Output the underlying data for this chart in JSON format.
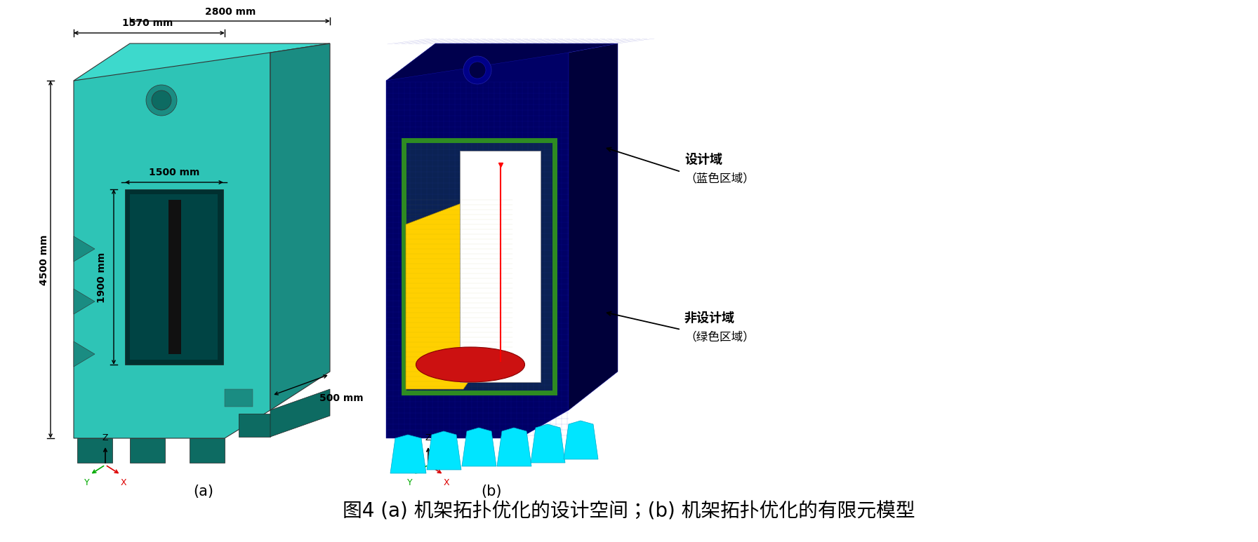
{
  "figure_width": 17.72,
  "figure_height": 7.48,
  "bg_color": "#ffffff",
  "caption": "图4 (a) 机架拓扑优化的设计空间；(b) 机架拓扑优化的有限元模型",
  "caption_fontsize": 20,
  "label_a": "(a)",
  "label_b": "(b)",
  "label_fontsize": 16,
  "dim_1570": "1570 mm",
  "dim_2800": "2800 mm",
  "dim_1500": "1500 mm",
  "dim_1900": "1900 mm",
  "dim_4500": "4500 mm",
  "dim_500": "500 mm",
  "annotation_1": "设计域",
  "annotation_1b": "（蓝色区域）",
  "annotation_2": "非设计域",
  "annotation_2b": "（绿色区域）",
  "teal_face": "#2EC4B6",
  "teal_top": "#3DD9CC",
  "teal_side": "#1A8C82",
  "teal_dark": "#0D6B62",
  "blue_body": "#000066",
  "blue_top": "#00004D",
  "blue_side": "#00003A",
  "green_border": "#2E8B22",
  "yellow_color": "#FFD000",
  "red_color": "#CC1111",
  "cyan_color": "#00E5FF",
  "black": "#000000",
  "white": "#FFFFFF"
}
